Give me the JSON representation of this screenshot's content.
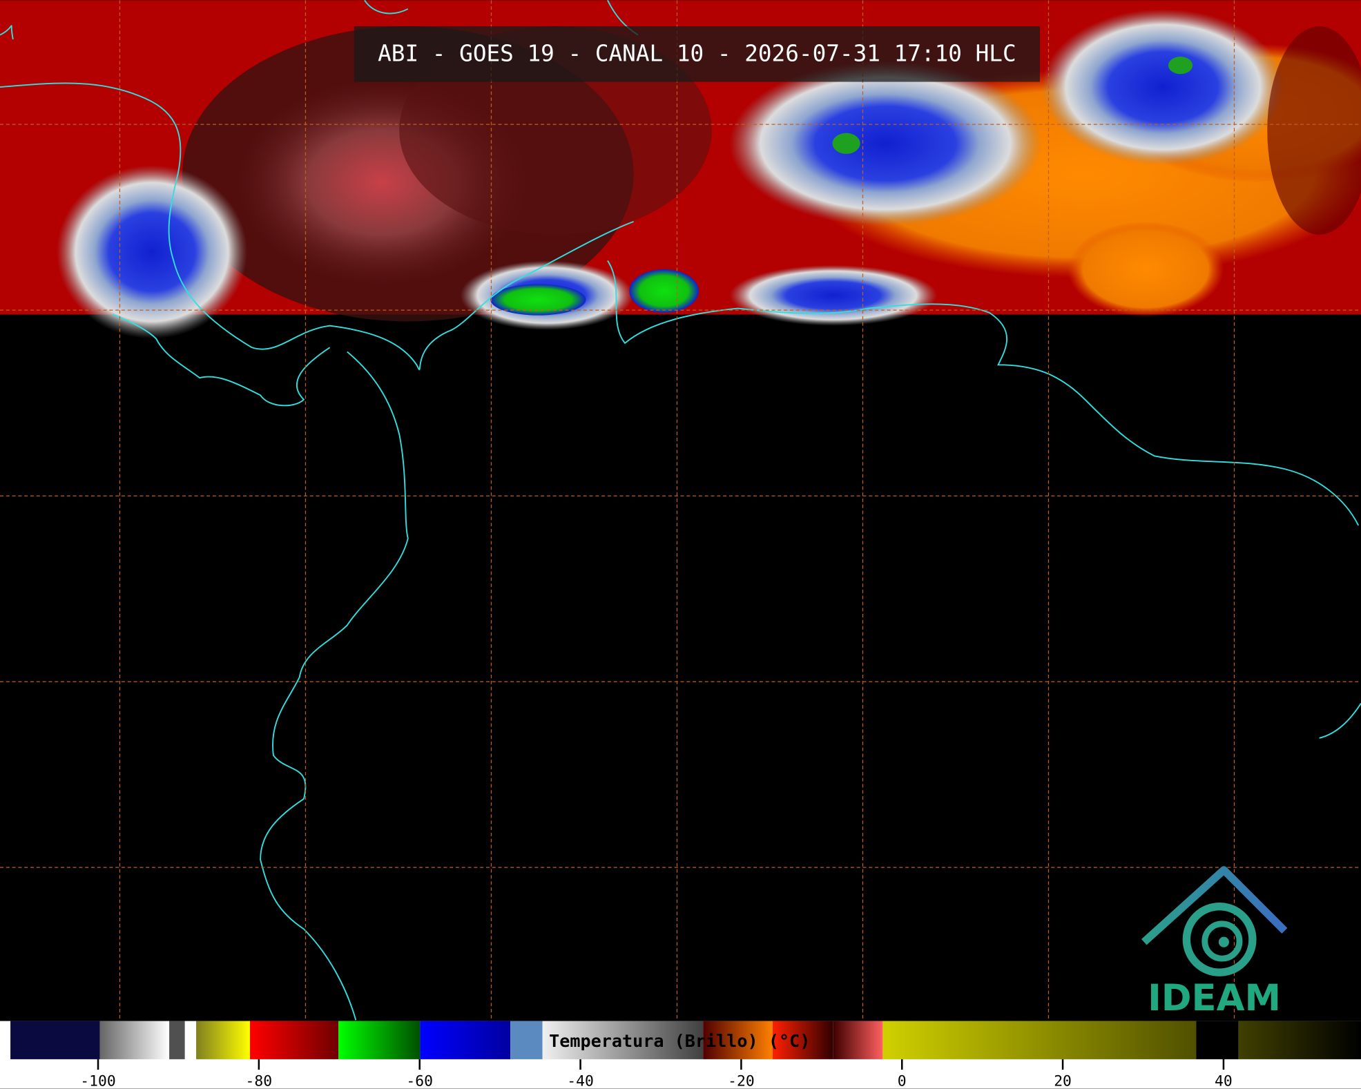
{
  "header": {
    "title": "ABI - GOES 19 - CANAL 10 - 2026-07-31 17:10 HLC"
  },
  "colorbar": {
    "label": "Temperatura (Brillo) (°C)",
    "range": [
      -112.2,
      57.1
    ],
    "ticks": [
      -100,
      -80,
      -60,
      -40,
      -20,
      0,
      20,
      40
    ]
  },
  "logo": {
    "text": "IDEAM"
  }
}
